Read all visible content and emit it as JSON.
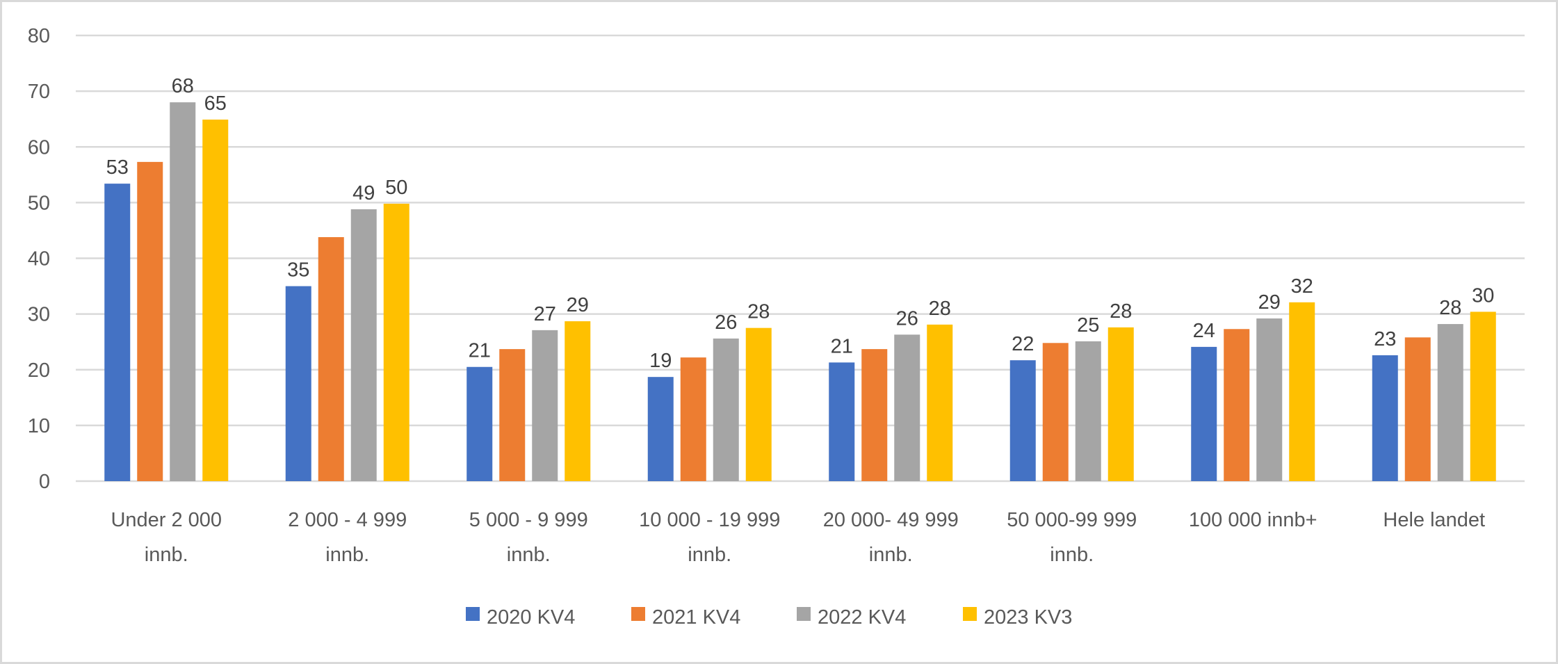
{
  "chart_data": {
    "type": "bar",
    "title": "",
    "xlabel": "",
    "ylabel": "",
    "ylim": [
      0,
      80
    ],
    "yticks": [
      0,
      10,
      20,
      30,
      40,
      50,
      60,
      70,
      80
    ],
    "grid": true,
    "legend_position": "bottom",
    "categories": [
      [
        "Under 2 000",
        "innb."
      ],
      [
        "2 000 - 4 999",
        "innb."
      ],
      [
        "5 000 - 9 999",
        "innb."
      ],
      [
        "10 000 - 19 999",
        "innb."
      ],
      [
        "20 000- 49 999",
        "innb."
      ],
      [
        "50 000-99 999",
        "innb."
      ],
      [
        "100 000 innb+",
        ""
      ],
      [
        "Hele landet",
        ""
      ]
    ],
    "series": [
      {
        "name": "2020 KV4",
        "color": "#4472c4",
        "values": [
          53.4,
          35.0,
          20.5,
          18.7,
          21.3,
          21.7,
          24.1,
          22.6
        ],
        "labels": [
          "53",
          "35",
          "21",
          "19",
          "21",
          "22",
          "24",
          "23"
        ]
      },
      {
        "name": "2021 KV4",
        "color": "#ed7d31",
        "values": [
          57.3,
          43.8,
          23.7,
          22.2,
          23.7,
          24.8,
          27.3,
          25.8
        ],
        "labels": [
          null,
          null,
          null,
          null,
          null,
          null,
          null,
          null
        ]
      },
      {
        "name": "2022 KV4",
        "color": "#a5a5a5",
        "values": [
          68.0,
          48.8,
          27.1,
          25.6,
          26.3,
          25.1,
          29.2,
          28.2
        ],
        "labels": [
          "68",
          "49",
          "27",
          "26",
          "26",
          "25",
          "29",
          "28"
        ]
      },
      {
        "name": "2023 KV3",
        "color": "#ffc000",
        "values": [
          64.9,
          49.8,
          28.7,
          27.5,
          28.1,
          27.6,
          32.1,
          30.4
        ],
        "labels": [
          "65",
          "50",
          "29",
          "28",
          "28",
          "28",
          "32",
          "30"
        ]
      }
    ]
  }
}
